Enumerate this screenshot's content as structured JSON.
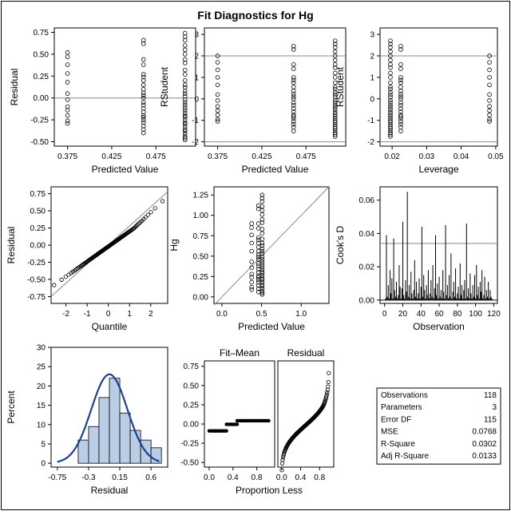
{
  "title": "Fit Diagnostics for Hg",
  "colors": {
    "bar_fill": "#b9cde5",
    "curve": "#1f3f8f",
    "ref": "#888888"
  },
  "chart_data": [
    {
      "id": "resid_pred",
      "type": "scatter",
      "xlabel": "Predicted Value",
      "ylabel": "Residual",
      "xlim": [
        0.36,
        0.52
      ],
      "ylim": [
        -0.55,
        0.8
      ],
      "xticks": [
        "0.375",
        "0.425",
        "0.475"
      ],
      "xtickvals": [
        0.375,
        0.425,
        0.475
      ],
      "yticks": [
        "0.75",
        "0.50",
        "0.25",
        "0.00",
        "-0.25",
        "-0.50"
      ],
      "ytickvals": [
        0.75,
        0.5,
        0.25,
        0.0,
        -0.25,
        -0.5
      ],
      "refy": [
        0
      ],
      "groups": [
        {
          "x": 0.375,
          "y": [
            0.52,
            0.47,
            0.38,
            0.28,
            0.18,
            0.05,
            -0.02,
            -0.1,
            -0.14,
            -0.2,
            -0.26,
            -0.29
          ]
        },
        {
          "x": 0.461,
          "y": [
            0.66,
            0.62,
            0.44,
            0.38,
            0.27,
            0.24,
            0.2,
            0.15,
            0.1,
            0.06,
            0.03,
            0.0,
            -0.05,
            -0.08,
            -0.12,
            -0.16,
            -0.2,
            -0.22,
            -0.25,
            -0.28,
            -0.32,
            -0.36,
            -0.4
          ]
        },
        {
          "x": 0.508,
          "y": [
            0.74,
            0.7,
            0.66,
            0.6,
            0.55,
            0.5,
            0.44,
            0.4,
            0.32,
            0.27,
            0.2,
            0.15,
            0.12,
            0.08,
            0.05,
            0.02,
            -0.02,
            -0.05,
            -0.08,
            -0.11,
            -0.14,
            -0.17,
            -0.2,
            -0.22,
            -0.25,
            -0.28,
            -0.3,
            -0.33,
            -0.36,
            -0.38,
            -0.41,
            -0.44,
            -0.46,
            -0.48
          ]
        }
      ]
    },
    {
      "id": "rstud_pred",
      "type": "scatter",
      "xlabel": "Predicted Value",
      "ylabel": "RStudent",
      "xlim": [
        0.36,
        0.52
      ],
      "ylim": [
        -2.2,
        3.3
      ],
      "xticks": [
        "0.375",
        "0.425",
        "0.475"
      ],
      "xtickvals": [
        0.375,
        0.425,
        0.475
      ],
      "yticks": [
        "3",
        "2",
        "1",
        "0",
        "-1",
        "-2"
      ],
      "ytickvals": [
        3,
        2,
        1,
        0,
        -1,
        -2
      ],
      "refy": [
        2,
        -2
      ],
      "groups": [
        {
          "x": 0.375,
          "y": [
            2.0,
            1.7,
            1.35,
            1.0,
            0.65,
            0.2,
            -0.08,
            -0.35,
            -0.55,
            -0.75,
            -0.95,
            -1.05
          ]
        },
        {
          "x": 0.461,
          "y": [
            2.45,
            2.3,
            1.6,
            1.4,
            1.0,
            0.88,
            0.75,
            0.55,
            0.37,
            0.22,
            0.1,
            0.0,
            -0.18,
            -0.3,
            -0.45,
            -0.6,
            -0.75,
            -0.82,
            -0.92,
            -1.05,
            -1.18,
            -1.32,
            -1.5
          ]
        },
        {
          "x": 0.508,
          "y": [
            2.7,
            2.55,
            2.4,
            2.2,
            2.0,
            1.8,
            1.6,
            1.45,
            1.2,
            1.0,
            0.75,
            0.55,
            0.45,
            0.3,
            0.18,
            0.07,
            -0.07,
            -0.18,
            -0.3,
            -0.4,
            -0.5,
            -0.62,
            -0.72,
            -0.82,
            -0.92,
            -1.02,
            -1.1,
            -1.2,
            -1.3,
            -1.38,
            -1.48,
            -1.58,
            -1.66,
            -1.75
          ]
        }
      ]
    },
    {
      "id": "rstud_lev",
      "type": "scatter",
      "xlabel": "Leverage",
      "ylabel": "RStudent",
      "xlim": [
        0.0165,
        0.0505
      ],
      "ylim": [
        -2.2,
        3.3
      ],
      "xticks": [
        "0.02",
        "0.03",
        "0.04",
        "0.05"
      ],
      "xtickvals": [
        0.02,
        0.03,
        0.04,
        0.05
      ],
      "yticks": [
        "3",
        "2",
        "1",
        "0",
        "-1",
        "-2"
      ],
      "ytickvals": [
        3,
        2,
        1,
        0,
        -1,
        -2
      ],
      "refy": [
        2,
        -2
      ],
      "groups": [
        {
          "x": 0.0195,
          "y": [
            2.7,
            2.55,
            2.4,
            2.2,
            2.0,
            1.8,
            1.6,
            1.45,
            1.2,
            1.0,
            0.75,
            0.55,
            0.45,
            0.3,
            0.18,
            0.07,
            -0.07,
            -0.18,
            -0.3,
            -0.4,
            -0.5,
            -0.62,
            -0.72,
            -0.82,
            -0.92,
            -1.02,
            -1.1,
            -1.2,
            -1.3,
            -1.38,
            -1.48,
            -1.58,
            -1.66,
            -1.75
          ]
        },
        {
          "x": 0.0225,
          "y": [
            2.45,
            2.3,
            1.6,
            1.4,
            1.0,
            0.88,
            0.75,
            0.55,
            0.37,
            0.22,
            0.1,
            0.0,
            -0.18,
            -0.3,
            -0.45,
            -0.6,
            -0.75,
            -0.82,
            -0.92,
            -1.05,
            -1.18,
            -1.32,
            -1.5
          ]
        },
        {
          "x": 0.0482,
          "y": [
            2.0,
            1.7,
            1.35,
            1.0,
            0.65,
            0.2,
            -0.08,
            -0.35,
            -0.55,
            -0.75,
            -0.95,
            -1.05
          ]
        }
      ]
    },
    {
      "id": "qq",
      "type": "scatter",
      "xlabel": "Quantile",
      "ylabel": "Residual",
      "xlim": [
        -2.7,
        2.8
      ],
      "ylim": [
        -0.85,
        0.85
      ],
      "xticks": [
        "-2",
        "-1",
        "0",
        "1",
        "2"
      ],
      "xtickvals": [
        -2,
        -1,
        0,
        1,
        2
      ],
      "yticks": [
        "0.75",
        "0.50",
        "0.25",
        "0.00",
        "-0.25",
        "-0.50",
        "-0.75"
      ],
      "ytickvals": [
        0.75,
        0.5,
        0.25,
        0.0,
        -0.25,
        -0.5,
        -0.75
      ],
      "diag_line": [
        [
          -2.7,
          -0.75
        ],
        [
          2.8,
          0.78
        ]
      ],
      "qq_fit": {
        "n": 118,
        "a": -0.02,
        "b": 0.22,
        "tail": 0.09
      }
    },
    {
      "id": "obs_pred",
      "type": "scatter",
      "xlabel": "Predicted Value",
      "ylabel": "Hg",
      "xlim": [
        -0.1,
        1.35
      ],
      "ylim": [
        -0.08,
        1.35
      ],
      "xticks": [
        "0.0",
        "0.5",
        "1.0"
      ],
      "xtickvals": [
        0.0,
        0.5,
        1.0
      ],
      "yticks": [
        "1.25",
        "1.00",
        "0.75",
        "0.50",
        "0.25",
        "0.00"
      ],
      "ytickvals": [
        1.25,
        1.0,
        0.75,
        0.5,
        0.25,
        0.0
      ],
      "diag_line": [
        [
          -0.1,
          -0.1
        ],
        [
          1.35,
          1.35
        ]
      ],
      "groups": [
        {
          "x": 0.375,
          "y": [
            0.9,
            0.85,
            0.76,
            0.66,
            0.56,
            0.43,
            0.36,
            0.28,
            0.24,
            0.18,
            0.12,
            0.09
          ]
        },
        {
          "x": 0.461,
          "y": [
            1.12,
            1.08,
            0.9,
            0.84,
            0.73,
            0.7,
            0.66,
            0.61,
            0.56,
            0.52,
            0.49,
            0.46,
            0.41,
            0.38,
            0.34,
            0.3,
            0.26,
            0.24,
            0.21,
            0.18,
            0.14,
            0.1,
            0.06
          ]
        },
        {
          "x": 0.508,
          "y": [
            1.25,
            1.21,
            1.17,
            1.11,
            1.06,
            1.01,
            0.95,
            0.91,
            0.83,
            0.78,
            0.71,
            0.66,
            0.63,
            0.59,
            0.56,
            0.53,
            0.49,
            0.46,
            0.43,
            0.4,
            0.37,
            0.34,
            0.31,
            0.29,
            0.26,
            0.23,
            0.21,
            0.18,
            0.15,
            0.13,
            0.1,
            0.07,
            0.05,
            0.03
          ]
        }
      ]
    },
    {
      "id": "cooks",
      "type": "needle",
      "xlabel": "Observation",
      "ylabel": "Cook's D",
      "xlim": [
        -5,
        124
      ],
      "ylim": [
        -0.002,
        0.068
      ],
      "xticks": [
        "0",
        "20",
        "40",
        "60",
        "80",
        "100",
        "120"
      ],
      "xtickvals": [
        0,
        20,
        40,
        60,
        80,
        100,
        120
      ],
      "yticks": [
        "0.06",
        "0.04",
        "0.02",
        "0.00"
      ],
      "ytickvals": [
        0.06,
        0.04,
        0.02,
        0.0
      ],
      "refy": [
        0.034
      ],
      "values": [
        0.001,
        0.039,
        0.002,
        0.009,
        0.001,
        0.018,
        0.004,
        0.013,
        0.001,
        0.037,
        0.006,
        0.002,
        0.011,
        0.001,
        0.003,
        0.021,
        0.008,
        0.001,
        0.007,
        0.047,
        0.003,
        0.001,
        0.012,
        0.005,
        0.065,
        0.002,
        0.009,
        0.001,
        0.017,
        0.004,
        0.001,
        0.006,
        0.024,
        0.002,
        0.011,
        0.001,
        0.004,
        0.013,
        0.001,
        0.008,
        0.044,
        0.002,
        0.015,
        0.006,
        0.001,
        0.009,
        0.003,
        0.018,
        0.001,
        0.004,
        0.012,
        0.002,
        0.021,
        0.001,
        0.007,
        0.039,
        0.003,
        0.01,
        0.001,
        0.014,
        0.002,
        0.006,
        0.001,
        0.018,
        0.005,
        0.001,
        0.045,
        0.003,
        0.009,
        0.001,
        0.015,
        0.002,
        0.028,
        0.001,
        0.005,
        0.011,
        0.002,
        0.019,
        0.001,
        0.004,
        0.008,
        0.001,
        0.022,
        0.003,
        0.009,
        0.001,
        0.006,
        0.012,
        0.001,
        0.046,
        0.002,
        0.007,
        0.001,
        0.016,
        0.004,
        0.001,
        0.009,
        0.002,
        0.015,
        0.001,
        0.021,
        0.003,
        0.008,
        0.001,
        0.011,
        0.005,
        0.018,
        0.001,
        0.003,
        0.014,
        0.001,
        0.006,
        0.002,
        0.011,
        0.001,
        0.006,
        0.002,
        0.001
      ]
    },
    {
      "id": "hist",
      "type": "histogram",
      "xlabel": "Residual",
      "ylabel": "Percent",
      "xlim": [
        -0.84,
        0.84
      ],
      "ylim": [
        -1,
        30
      ],
      "xticks": [
        "-0.75",
        "-0.3",
        "0.15",
        "0.6"
      ],
      "xtickvals": [
        -0.75,
        -0.3,
        0.15,
        0.6
      ],
      "yticks": [
        "30",
        "25",
        "20",
        "15",
        "10",
        "5",
        "0"
      ],
      "ytickvals": [
        30,
        25,
        20,
        15,
        10,
        5,
        0
      ],
      "bin_edges": [
        -0.6,
        -0.45,
        -0.3,
        -0.15,
        0.0,
        0.15,
        0.3,
        0.45,
        0.6,
        0.75
      ],
      "values": [
        0,
        6,
        9.5,
        17,
        22,
        13,
        8.5,
        6,
        4,
        2
      ],
      "normal_curve": {
        "mean": 0.0,
        "sd": 0.26,
        "xmin": -0.75,
        "xmax": 0.72
      }
    },
    {
      "id": "rf_plot",
      "type": "scatter",
      "xlabel": "Proportion Less",
      "panel_titles": [
        "Fit–Mean",
        "Residual"
      ],
      "xlim": [
        -0.08,
        1.1
      ],
      "ylim": [
        -0.56,
        0.82
      ],
      "xticks": [
        "0.0",
        "0.4",
        "0.8"
      ],
      "xtickvals": [
        0.0,
        0.4,
        0.8
      ],
      "yticks": [
        "0.75",
        "0.50",
        "0.25",
        "0.00",
        "-0.25",
        "-0.50"
      ],
      "ytickvals": [
        0.75,
        0.5,
        0.25,
        0.0,
        -0.25,
        -0.5
      ],
      "fit_levels": [
        {
          "from": 0.0,
          "to": 0.1,
          "y": -0.09
        },
        {
          "from": 0.1,
          "to": 0.29,
          "y": -0.09
        },
        {
          "from": 0.29,
          "to": 0.47,
          "y": -0.004
        },
        {
          "from": 0.47,
          "to": 1.0,
          "y": 0.042
        }
      ]
    }
  ],
  "stats": [
    {
      "label": "Observations",
      "value": "118"
    },
    {
      "label": "Parameters",
      "value": "3"
    },
    {
      "label": "Error DF",
      "value": "115"
    },
    {
      "label": "MSE",
      "value": "0.0768"
    },
    {
      "label": "R-Square",
      "value": "0.0302"
    },
    {
      "label": "Adj R-Square",
      "value": "0.0133"
    }
  ]
}
